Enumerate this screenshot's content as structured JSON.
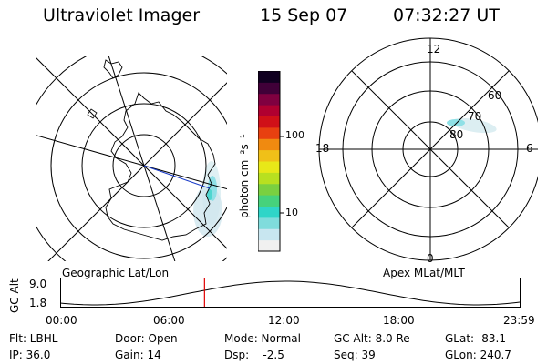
{
  "header": {
    "title": "Ultraviolet Imager",
    "date": "15 Sep 07",
    "time": "07:32:27 UT"
  },
  "left_panel": {
    "caption": "Geographic Lat/Lon"
  },
  "right_panel": {
    "caption": "Apex MLat/MLT",
    "mlt_labels": [
      "12",
      "18",
      "6",
      "0"
    ],
    "mlat_labels": [
      "60",
      "70",
      "80"
    ]
  },
  "colorbar": {
    "unit_label": "photon cm⁻²s⁻¹",
    "tick_labels": [
      "100",
      "10"
    ],
    "colors": [
      "#f0f0f0",
      "#c8e6f0",
      "#7fdcdc",
      "#2fd5c8",
      "#46d27c",
      "#7ad040",
      "#b8e020",
      "#e8e818",
      "#f0c018",
      "#f08a10",
      "#e84010",
      "#d01018",
      "#b00030",
      "#800040",
      "#400038",
      "#100020"
    ]
  },
  "altitude_plot": {
    "ylabel": "GC Alt",
    "y_ticks": [
      "9.0",
      "1.8"
    ],
    "x_ticks": [
      "00:00",
      "06:00",
      "12:00",
      "18:00",
      "23:59"
    ],
    "current_time_hours": 7.54,
    "marker_color": "#e00000"
  },
  "info": {
    "row1": [
      "Flt: LBHL",
      "Door: Open",
      "Mode: Normal",
      "GC Alt: 8.0 Re",
      "GLat: -83.1"
    ],
    "row2": [
      "IP: 36.0",
      "Gain: 14",
      "Dsp:    -2.5",
      "Seq: 39",
      "GLon: 240.7"
    ]
  }
}
